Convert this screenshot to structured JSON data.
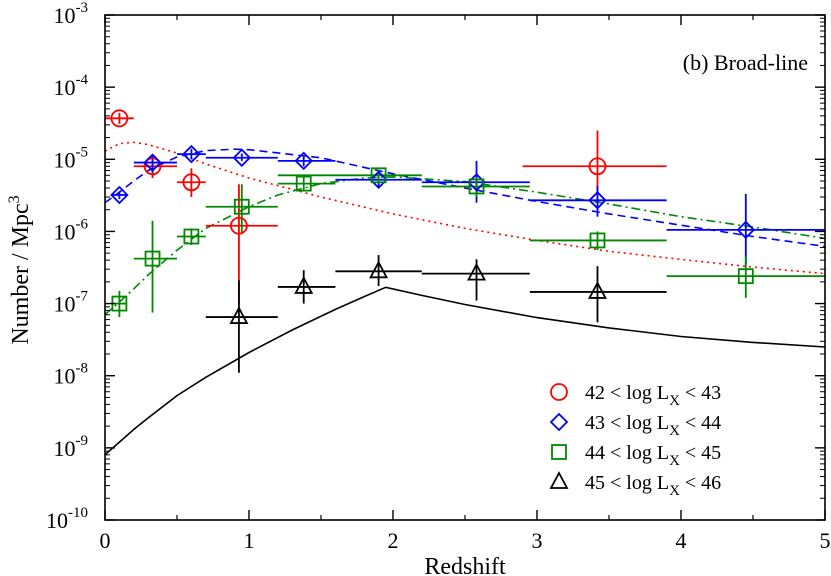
{
  "chart_data": {
    "type": "scatter",
    "title": "",
    "annotation": "(b) Broad-line",
    "xlabel": "Redshift",
    "ylabel": "Number / Mpc",
    "ylabel_superscript": "3",
    "xlim": [
      0,
      5
    ],
    "ylim": [
      1e-10,
      0.001
    ],
    "yscale": "log",
    "x_ticks": [
      {
        "value": 0,
        "label": "0"
      },
      {
        "value": 1,
        "label": "1"
      },
      {
        "value": 2,
        "label": "2"
      },
      {
        "value": 3,
        "label": "3"
      },
      {
        "value": 4,
        "label": "4"
      },
      {
        "value": 5,
        "label": "5"
      }
    ],
    "y_ticks": [
      {
        "exp": -10,
        "base": "10",
        "sup": "-10"
      },
      {
        "exp": -9,
        "base": "10",
        "sup": "-9"
      },
      {
        "exp": -8,
        "base": "10",
        "sup": "-8"
      },
      {
        "exp": -7,
        "base": "10",
        "sup": "-7"
      },
      {
        "exp": -6,
        "base": "10",
        "sup": "-6"
      },
      {
        "exp": -5,
        "base": "10",
        "sup": "-5"
      },
      {
        "exp": -4,
        "base": "10",
        "sup": "-4"
      },
      {
        "exp": -3,
        "base": "10",
        "sup": "-3"
      }
    ],
    "legend_position": "bottom-right",
    "series": [
      {
        "name": "42 < log L_X < 43",
        "label_pre": "42 < log L",
        "label_sub": "X",
        "label_post": " < 43",
        "marker": "circle",
        "color": "#ff0000",
        "points": [
          {
            "x": 0.1,
            "y": 3.7e-05,
            "xerr": [
              0.0,
              0.2
            ],
            "yerr": [
              3.1e-05,
              4.4e-05
            ]
          },
          {
            "x": 0.33,
            "y": 8e-06,
            "xerr": [
              0.2,
              0.5
            ],
            "yerr": [
              5.5e-06,
              1.15e-05
            ]
          },
          {
            "x": 0.6,
            "y": 4.8e-06,
            "xerr": [
              0.5,
              0.7
            ],
            "yerr": [
              3e-06,
              7.5e-06
            ]
          },
          {
            "x": 0.93,
            "y": 1.2e-06,
            "xerr": [
              0.7,
              1.2
            ],
            "yerr": [
              1e-07,
              4.5e-06
            ]
          },
          {
            "x": 3.42,
            "y": 8e-06,
            "xerr": [
              2.9,
              3.9
            ],
            "yerr": [
              2e-06,
              2.5e-05
            ]
          }
        ],
        "model": {
          "style": "dotted",
          "x": [
            0.0,
            0.1,
            0.2,
            0.3,
            0.5,
            0.7,
            1.0,
            1.5,
            2.0,
            2.5,
            3.0,
            3.5,
            4.0,
            4.5,
            5.0
          ],
          "y": [
            1.3e-05,
            1.65e-05,
            1.72e-05,
            1.6e-05,
            1.22e-05,
            8.6e-06,
            5.5e-06,
            3e-06,
            1.75e-06,
            1.1e-06,
            7.5e-07,
            5.3e-07,
            4.1e-07,
            3.2e-07,
            2.6e-07
          ]
        }
      },
      {
        "name": "43 < log L_X < 44",
        "label_pre": "43 < log L",
        "label_sub": "X",
        "label_post": " < 44",
        "marker": "diamond",
        "color": "#0000ff",
        "points": [
          {
            "x": 0.1,
            "y": 3.2e-06,
            "xerr": [
              0.05,
              0.15
            ],
            "yerr": [
              2.8e-06,
              3.6e-06
            ]
          },
          {
            "x": 0.33,
            "y": 9e-06,
            "xerr": [
              0.2,
              0.5
            ],
            "yerr": [
              6.5e-06,
              1.15e-05
            ]
          },
          {
            "x": 0.6,
            "y": 1.18e-05,
            "xerr": [
              0.5,
              0.7
            ],
            "yerr": [
              1e-05,
              1.4e-05
            ]
          },
          {
            "x": 0.95,
            "y": 1.05e-05,
            "xerr": [
              0.7,
              1.2
            ],
            "yerr": [
              9.5e-06,
              1.2e-05
            ]
          },
          {
            "x": 1.38,
            "y": 9.5e-06,
            "xerr": [
              1.2,
              1.6
            ],
            "yerr": [
              8e-06,
              1.1e-05
            ]
          },
          {
            "x": 1.9,
            "y": 5.2e-06,
            "xerr": [
              1.6,
              2.2
            ],
            "yerr": [
              4.2e-06,
              6.4e-06
            ]
          },
          {
            "x": 2.58,
            "y": 4.8e-06,
            "xerr": [
              2.2,
              2.95
            ],
            "yerr": [
              2.5e-06,
              9.5e-06
            ]
          },
          {
            "x": 3.42,
            "y": 2.7e-06,
            "xerr": [
              2.95,
              3.9
            ],
            "yerr": [
              1.6e-06,
              4.3e-06
            ]
          },
          {
            "x": 4.45,
            "y": 1.05e-06,
            "xerr": [
              3.9,
              5.0
            ],
            "yerr": [
              3.5e-07,
              3.3e-06
            ]
          }
        ],
        "model": {
          "style": "dashed",
          "x": [
            0.0,
            0.1,
            0.2,
            0.3,
            0.5,
            0.7,
            0.9,
            1.0,
            1.5,
            2.0,
            2.5,
            3.0,
            3.5,
            4.0,
            4.5,
            5.0
          ],
          "y": [
            2.5e-06,
            3.5e-06,
            5e-06,
            7e-06,
            1.08e-05,
            1.32e-05,
            1.38e-05,
            1.36e-05,
            1.05e-05,
            6.3e-06,
            4e-06,
            2.6e-06,
            1.75e-06,
            1.22e-06,
            8.5e-07,
            6.2e-07
          ]
        }
      },
      {
        "name": "44 < log L_X < 45",
        "label_pre": "44 < log L",
        "label_sub": "X",
        "label_post": " < 45",
        "marker": "square",
        "color": "#008800",
        "points": [
          {
            "x": 0.1,
            "y": 1e-07,
            "xerr": [
              0.05,
              0.15
            ],
            "yerr": [
              6.5e-08,
              1.5e-07
            ]
          },
          {
            "x": 0.33,
            "y": 4.2e-07,
            "xerr": [
              0.2,
              0.5
            ],
            "yerr": [
              7.5e-08,
              1.4e-06
            ]
          },
          {
            "x": 0.6,
            "y": 8.5e-07,
            "xerr": [
              0.5,
              0.7
            ],
            "yerr": [
              6.5e-07,
              1.1e-06
            ]
          },
          {
            "x": 0.95,
            "y": 2.2e-06,
            "xerr": [
              0.7,
              1.2
            ],
            "yerr": [
              9.5e-07,
              4.5e-06
            ]
          },
          {
            "x": 1.38,
            "y": 4.6e-06,
            "xerr": [
              1.2,
              1.6
            ],
            "yerr": [
              3.6e-06,
              5.6e-06
            ]
          },
          {
            "x": 1.9,
            "y": 6e-06,
            "xerr": [
              1.2,
              2.2
            ],
            "yerr": [
              4.9e-06,
              7.2e-06
            ]
          },
          {
            "x": 2.58,
            "y": 4.2e-06,
            "xerr": [
              2.2,
              2.95
            ],
            "yerr": [
              3e-06,
              5.5e-06
            ]
          },
          {
            "x": 3.42,
            "y": 7.5e-07,
            "xerr": [
              2.95,
              3.9
            ],
            "yerr": [
              5.5e-07,
              1e-06
            ]
          },
          {
            "x": 4.45,
            "y": 2.4e-07,
            "xerr": [
              3.9,
              5.0
            ],
            "yerr": [
              1.2e-07,
              4.5e-07
            ]
          }
        ],
        "model": {
          "style": "dash-dot",
          "x": [
            0.0,
            0.1,
            0.2,
            0.3,
            0.5,
            0.7,
            1.0,
            1.2,
            1.5,
            1.8,
            2.0,
            2.5,
            3.0,
            3.5,
            4.0,
            4.5,
            5.0
          ],
          "y": [
            7e-08,
            1.05e-07,
            1.6e-07,
            2.5e-07,
            5.5e-07,
            1.1e-06,
            2.2e-06,
            3.2e-06,
            4.6e-06,
            5.5e-06,
            5.7e-06,
            4.9e-06,
            3.5e-06,
            2.4e-06,
            1.6e-06,
            1.15e-06,
            8e-07
          ]
        }
      },
      {
        "name": "45 < log L_X < 46",
        "label_pre": "45 < log L",
        "label_sub": "X",
        "label_post": " < 46",
        "marker": "triangle",
        "color": "#000000",
        "points": [
          {
            "x": 0.93,
            "y": 6.5e-08,
            "xerr": [
              0.7,
              1.2
            ],
            "yerr": [
              1.1e-08,
              2.1e-07
            ]
          },
          {
            "x": 1.38,
            "y": 1.7e-07,
            "xerr": [
              1.2,
              1.6
            ],
            "yerr": [
              1e-07,
              2.9e-07
            ]
          },
          {
            "x": 1.9,
            "y": 2.8e-07,
            "xerr": [
              1.6,
              2.2
            ],
            "yerr": [
              1.75e-07,
              4.7e-07
            ]
          },
          {
            "x": 2.58,
            "y": 2.6e-07,
            "xerr": [
              2.2,
              2.95
            ],
            "yerr": [
              1.1e-07,
              4.1e-07
            ]
          },
          {
            "x": 3.42,
            "y": 1.45e-07,
            "xerr": [
              2.95,
              3.9
            ],
            "yerr": [
              5.5e-08,
              3.3e-07
            ]
          }
        ],
        "model": {
          "style": "solid",
          "x": [
            0.0,
            0.1,
            0.2,
            0.3,
            0.5,
            0.7,
            1.0,
            1.3,
            1.6,
            1.8,
            1.95,
            2.2,
            2.5,
            3.0,
            3.5,
            4.0,
            4.5,
            5.0
          ],
          "y": [
            8e-10,
            1.2e-09,
            1.8e-09,
            2.6e-09,
            5.3e-09,
            9.5e-09,
            2.1e-08,
            4.3e-08,
            8.3e-08,
            1.25e-07,
            1.68e-07,
            1.3e-07,
            9.7e-08,
            6.4e-08,
            4.6e-08,
            3.5e-08,
            2.9e-08,
            2.5e-08
          ]
        }
      }
    ]
  }
}
